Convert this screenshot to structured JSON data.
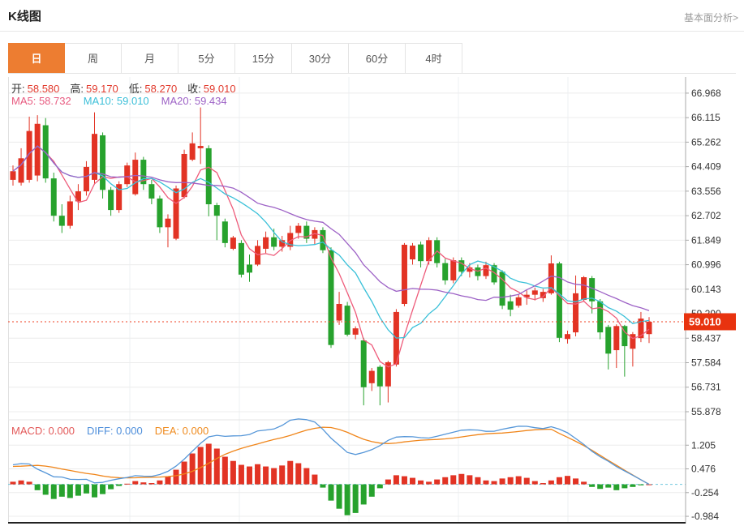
{
  "header": {
    "title": "K线图",
    "link": "基本面分析>"
  },
  "tabs": {
    "items": [
      "日",
      "周",
      "月",
      "5分",
      "15分",
      "30分",
      "60分",
      "4时"
    ],
    "active_index": 0
  },
  "info": {
    "ohlc": [
      {
        "label": "开:",
        "value": "58.580"
      },
      {
        "label": "高:",
        "value": "59.170"
      },
      {
        "label": "低:",
        "value": "58.270"
      },
      {
        "label": "收:",
        "value": "59.010"
      }
    ],
    "ma": [
      {
        "label": "MA5:",
        "value": "58.732",
        "color": "#e85b80"
      },
      {
        "label": "MA10:",
        "value": "59.010",
        "color": "#3bbfd8"
      },
      {
        "label": "MA20:",
        "value": "59.434",
        "color": "#9d62c6"
      }
    ],
    "macd": [
      {
        "label": "MACD:",
        "value": "0.000",
        "color": "#e35a5a"
      },
      {
        "label": "DIFF:",
        "value": "0.000",
        "color": "#4f8fdb"
      },
      {
        "label": "DEA:",
        "value": "0.000",
        "color": "#ef8b1f"
      }
    ]
  },
  "colors": {
    "up": "#e23324",
    "down": "#27a22d",
    "ma5": "#ee5b7a",
    "ma10": "#39c0d8",
    "ma20": "#9d62c6",
    "diff": "#5596d8",
    "dea": "#f08519",
    "grid": "#ececec",
    "vgrid": "#eef1f3",
    "axis": "#a8a8a8",
    "price_line": "#ef4123",
    "zero_dash": "#6fc6dd",
    "ohlc_value": "#e23b2e",
    "tag_bg": "#e8330f",
    "tag_text": "#ffffff"
  },
  "chart_data": {
    "type": "candlestick+macd",
    "panes": [
      {
        "type": "candlestick",
        "ylim": [
          55.68,
          67.53
        ],
        "yticks": [
          66.968,
          66.115,
          65.262,
          64.409,
          63.556,
          62.702,
          61.849,
          60.996,
          60.143,
          59.29,
          58.437,
          57.584,
          56.731,
          55.878
        ],
        "last_price": 59.01,
        "last_price_label": "59.010",
        "price_line": 59.01,
        "ma_periods": [
          5,
          10,
          20
        ],
        "candles": [
          [
            63.95,
            64.45,
            63.75,
            64.25
          ],
          [
            63.85,
            65.05,
            63.75,
            64.7
          ],
          [
            63.95,
            66.15,
            63.85,
            65.65
          ],
          [
            64.1,
            66.2,
            63.9,
            65.9
          ],
          [
            65.85,
            66.1,
            63.85,
            64.0
          ],
          [
            64.0,
            64.2,
            62.5,
            62.7
          ],
          [
            62.7,
            63.1,
            62.1,
            62.35
          ],
          [
            62.35,
            63.4,
            62.25,
            63.2
          ],
          [
            63.2,
            63.8,
            62.9,
            63.55
          ],
          [
            63.55,
            64.6,
            63.4,
            64.4
          ],
          [
            63.95,
            66.3,
            63.8,
            65.55
          ],
          [
            65.5,
            65.6,
            63.3,
            63.6
          ],
          [
            63.6,
            63.7,
            62.7,
            62.9
          ],
          [
            62.9,
            63.9,
            62.8,
            63.8
          ],
          [
            63.8,
            64.55,
            63.7,
            64.45
          ],
          [
            63.45,
            64.9,
            63.4,
            64.65
          ],
          [
            64.65,
            64.75,
            63.6,
            63.8
          ],
          [
            63.8,
            63.95,
            63.1,
            63.3
          ],
          [
            63.3,
            63.4,
            62.1,
            62.3
          ],
          [
            62.3,
            62.75,
            61.6,
            62.6
          ],
          [
            61.9,
            63.75,
            61.85,
            63.65
          ],
          [
            63.35,
            65.0,
            63.3,
            64.85
          ],
          [
            64.65,
            65.6,
            64.6,
            65.22
          ],
          [
            65.05,
            66.47,
            64.5,
            65.13
          ],
          [
            65.05,
            65.15,
            62.68,
            63.1
          ],
          [
            63.07,
            63.15,
            61.85,
            62.7
          ],
          [
            62.5,
            62.6,
            61.6,
            61.75
          ],
          [
            61.55,
            62.0,
            61.5,
            61.94
          ],
          [
            61.75,
            61.85,
            60.55,
            60.65
          ],
          [
            61.0,
            61.35,
            60.4,
            60.72
          ],
          [
            61.0,
            61.85,
            60.95,
            61.65
          ],
          [
            61.55,
            62.15,
            61.4,
            61.95
          ],
          [
            61.95,
            62.25,
            61.5,
            61.62
          ],
          [
            61.62,
            62.0,
            61.45,
            61.85
          ],
          [
            61.62,
            62.35,
            61.5,
            62.1
          ],
          [
            62.1,
            62.45,
            61.9,
            62.35
          ],
          [
            62.35,
            62.5,
            61.75,
            61.9
          ],
          [
            61.9,
            62.3,
            61.7,
            62.2
          ],
          [
            62.2,
            62.3,
            61.4,
            61.5
          ],
          [
            61.5,
            61.6,
            58.1,
            58.2
          ],
          [
            59.05,
            60.05,
            58.9,
            59.63
          ],
          [
            59.57,
            59.7,
            58.5,
            58.56
          ],
          [
            58.56,
            58.85,
            58.4,
            58.78
          ],
          [
            58.36,
            58.45,
            56.1,
            56.73
          ],
          [
            56.87,
            57.4,
            56.6,
            57.3
          ],
          [
            57.44,
            57.5,
            56.1,
            56.76
          ],
          [
            56.76,
            57.65,
            56.2,
            57.6
          ],
          [
            57.52,
            59.45,
            57.45,
            59.35
          ],
          [
            59.63,
            61.75,
            59.55,
            61.69
          ],
          [
            61.18,
            61.75,
            61.0,
            61.66
          ],
          [
            61.7,
            61.8,
            60.9,
            61.12
          ],
          [
            61.12,
            61.95,
            61.0,
            61.85
          ],
          [
            61.85,
            61.95,
            60.9,
            61.05
          ],
          [
            61.05,
            61.2,
            60.3,
            60.45
          ],
          [
            60.45,
            61.25,
            60.35,
            61.15
          ],
          [
            61.15,
            61.25,
            60.6,
            60.75
          ],
          [
            60.75,
            61.05,
            60.55,
            60.9
          ],
          [
            60.9,
            61.0,
            60.45,
            60.6
          ],
          [
            60.6,
            61.1,
            60.5,
            60.98
          ],
          [
            60.98,
            61.05,
            60.3,
            60.38
          ],
          [
            60.75,
            60.8,
            59.45,
            59.57
          ],
          [
            59.72,
            59.95,
            59.2,
            59.43
          ],
          [
            59.57,
            59.95,
            59.5,
            59.86
          ],
          [
            59.86,
            60.1,
            59.6,
            59.95
          ],
          [
            59.95,
            60.2,
            59.75,
            60.1
          ],
          [
            59.83,
            60.15,
            59.7,
            60.05
          ],
          [
            60.0,
            61.32,
            59.95,
            61.04
          ],
          [
            61.04,
            61.1,
            58.3,
            58.45
          ],
          [
            58.41,
            58.7,
            58.25,
            58.58
          ],
          [
            58.64,
            60.62,
            58.5,
            60.0
          ],
          [
            59.77,
            60.6,
            59.7,
            60.56
          ],
          [
            60.53,
            60.6,
            59.3,
            59.72
          ],
          [
            59.72,
            59.8,
            58.4,
            58.64
          ],
          [
            58.83,
            58.9,
            57.35,
            57.9
          ],
          [
            58.02,
            58.92,
            57.4,
            58.86
          ],
          [
            58.86,
            58.9,
            57.1,
            58.16
          ],
          [
            58.07,
            58.65,
            57.45,
            58.58
          ],
          [
            58.44,
            59.35,
            58.3,
            59.12
          ],
          [
            58.58,
            59.17,
            58.27,
            59.01
          ]
        ]
      },
      {
        "type": "macd",
        "ylim": [
          -1.23,
          1.93
        ],
        "yticks": [
          1.205,
          0.476,
          -0.254,
          -0.984
        ],
        "hist": [
          0.08,
          0.12,
          0.08,
          -0.18,
          -0.32,
          -0.45,
          -0.38,
          -0.42,
          -0.35,
          -0.28,
          -0.4,
          -0.3,
          -0.15,
          -0.05,
          0.02,
          0.1,
          0.06,
          0.04,
          0.12,
          0.25,
          0.45,
          0.7,
          0.95,
          1.15,
          1.25,
          1.1,
          0.85,
          0.72,
          0.6,
          0.55,
          0.62,
          0.55,
          0.5,
          0.58,
          0.72,
          0.65,
          0.5,
          0.3,
          -0.1,
          -0.5,
          -0.75,
          -0.95,
          -0.88,
          -0.62,
          -0.38,
          -0.12,
          0.15,
          0.28,
          0.25,
          0.2,
          0.12,
          0.08,
          0.15,
          0.22,
          0.28,
          0.32,
          0.28,
          0.22,
          0.12,
          0.1,
          0.18,
          0.22,
          0.25,
          0.2,
          0.1,
          0.04,
          0.12,
          0.22,
          0.26,
          0.18,
          0.08,
          -0.08,
          -0.14,
          -0.1,
          -0.18,
          -0.12,
          -0.08,
          -0.03,
          0.0
        ]
      }
    ]
  }
}
